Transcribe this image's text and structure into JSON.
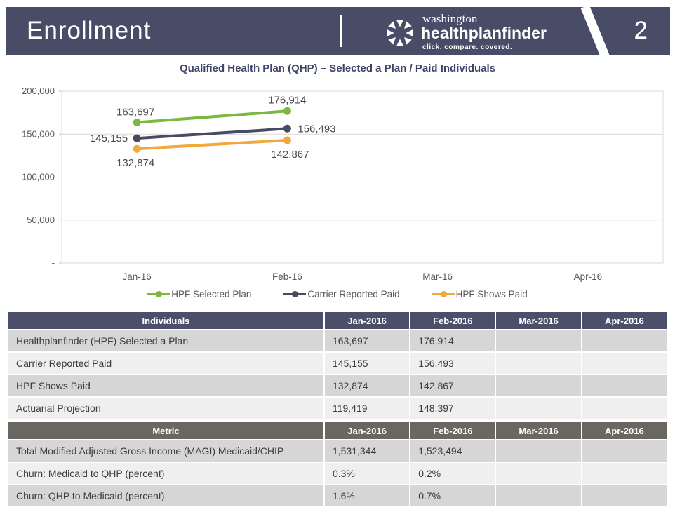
{
  "header": {
    "title": "Enrollment",
    "page_number": "2",
    "logo": {
      "top": "washington",
      "main": "healthplanfinder",
      "tagline": "click. compare. covered."
    },
    "bar_color": "#484c66"
  },
  "chart_data": {
    "type": "line",
    "title": "Qualified Health Plan (QHP) – Selected a Plan / Paid Individuals",
    "categories": [
      "Jan-16",
      "Feb-16",
      "Mar-16",
      "Apr-16"
    ],
    "series": [
      {
        "name": "HPF Selected Plan",
        "color": "#7ab840",
        "values": [
          163697,
          176914,
          null,
          null
        ]
      },
      {
        "name": "Carrier Reported Paid",
        "color": "#464a63",
        "values": [
          145155,
          156493,
          null,
          null
        ]
      },
      {
        "name": "HPF Shows Paid",
        "color": "#f2a83b",
        "values": [
          132874,
          142867,
          null,
          null
        ]
      }
    ],
    "ylim": [
      0,
      200000
    ],
    "yticks": [
      {
        "value": 200000,
        "label": "200,000"
      },
      {
        "value": 150000,
        "label": "150,000"
      },
      {
        "value": 100000,
        "label": "100,000"
      },
      {
        "value": 50000,
        "label": "50,000"
      },
      {
        "value": 0,
        "label": "-"
      }
    ],
    "grid": true,
    "legend_position": "bottom"
  },
  "tables": [
    {
      "header_color": "#4c4f69",
      "headers": [
        "Individuals",
        "Jan-2016",
        "Feb-2016",
        "Mar-2016",
        "Apr-2016"
      ],
      "rows": [
        [
          "Healthplanfinder (HPF) Selected a Plan",
          "163,697",
          "176,914",
          "",
          ""
        ],
        [
          "Carrier Reported Paid",
          "145,155",
          "156,493",
          "",
          ""
        ],
        [
          "HPF Shows Paid",
          "132,874",
          "142,867",
          "",
          ""
        ],
        [
          "Actuarial Projection",
          "119,419",
          "148,397",
          "",
          ""
        ]
      ]
    },
    {
      "header_color": "#6a6661",
      "headers": [
        "Metric",
        "Jan-2016",
        "Feb-2016",
        "Mar-2016",
        "Apr-2016"
      ],
      "rows": [
        [
          "Total Modified Adjusted Gross Income (MAGI) Medicaid/CHIP",
          "1,531,344",
          "1,523,494",
          "",
          ""
        ],
        [
          "Churn: Medicaid to QHP (percent)",
          "0.3%",
          "0.2%",
          "",
          ""
        ],
        [
          "Churn: QHP to Medicaid (percent)",
          "1.6%",
          "0.7%",
          "",
          ""
        ]
      ]
    }
  ],
  "colors": {
    "row_odd": "#d6d6d6",
    "row_even": "#efefef",
    "grid_line": "#d9d9d9",
    "axis_text": "#595959",
    "data_label": "#4a4a4a"
  }
}
